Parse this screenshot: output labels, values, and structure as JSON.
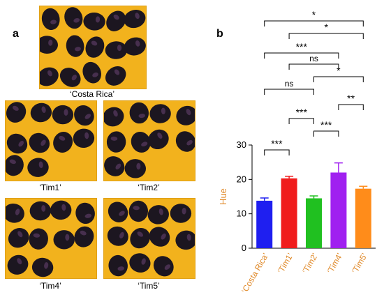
{
  "panel_a": {
    "label": "a",
    "photos": [
      {
        "caption": "‘Costa Rica’"
      },
      {
        "caption": "‘Tim1’"
      },
      {
        "caption": "‘Tim2’"
      },
      {
        "caption": "‘Tim4’"
      },
      {
        "caption": "‘Tim5’"
      }
    ],
    "colors": {
      "background": "#f2b21d",
      "kernel": "#1c1620",
      "kernel_highlight": "#5a3a62"
    }
  },
  "panel_b": {
    "label": "b"
  },
  "chart_data": {
    "type": "bar",
    "categories": [
      "‘Costa Rica’",
      "‘Tim1’",
      "‘Tim2’",
      "‘Tim4’",
      "‘Tim5’"
    ],
    "values": [
      13.8,
      20.3,
      14.5,
      22.0,
      17.3
    ],
    "errors": [
      0.8,
      0.6,
      0.7,
      2.8,
      0.7
    ],
    "colors": [
      "#1f1ff0",
      "#f01c1c",
      "#20c020",
      "#a020f0",
      "#ff8c1a"
    ],
    "ylabel": "Hue",
    "ylabel_color": "#e08a2a",
    "xtick_color": "#e08a2a",
    "ylim": [
      0,
      30
    ],
    "yticks": [
      0,
      10,
      20,
      30
    ],
    "grid": false,
    "significance": [
      {
        "from": 0,
        "to": 1,
        "label": "***"
      },
      {
        "from": 2,
        "to": 3,
        "label": "***"
      },
      {
        "from": 1,
        "to": 2,
        "label": "***"
      },
      {
        "from": 3,
        "to": 4,
        "label": "**"
      },
      {
        "from": 0,
        "to": 2,
        "label": "ns"
      },
      {
        "from": 2,
        "to": 4,
        "label": "*"
      },
      {
        "from": 1,
        "to": 3,
        "label": "ns"
      },
      {
        "from": 0,
        "to": 3,
        "label": "***"
      },
      {
        "from": 1,
        "to": 4,
        "label": "*"
      },
      {
        "from": 0,
        "to": 4,
        "label": "*"
      }
    ]
  }
}
